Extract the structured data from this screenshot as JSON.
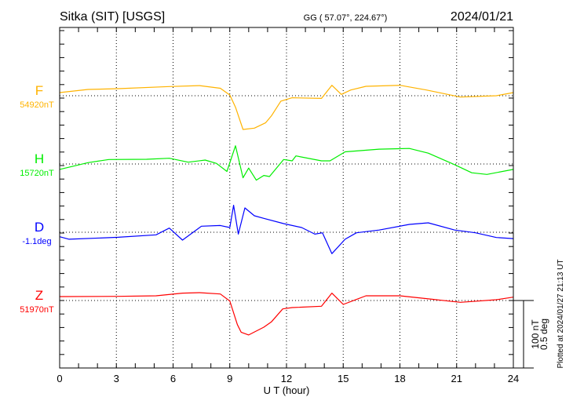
{
  "header": {
    "station": "Sitka (SIT)  [USGS]",
    "coords": "GG ( 57.07°, 224.67°)",
    "date": "2024/01/21"
  },
  "footer": {
    "plotted": "Plotted at 2024/01/27 21:13 UT"
  },
  "scale": {
    "nT_label": "100 nT",
    "deg_label": "0.5 deg",
    "nT": 100,
    "deg": 0.5
  },
  "chart_data": {
    "type": "line",
    "title": "Sitka (SIT) [USGS] 2024/01/21",
    "xlabel": "U T (hour)",
    "xlim": [
      0,
      24
    ],
    "xticks": [
      "0",
      "3",
      "6",
      "9",
      "12",
      "15",
      "18",
      "21",
      "24"
    ],
    "grid": true,
    "series": [
      {
        "name": "F",
        "baseline_label": "54920nT",
        "color": "#ffb300",
        "unit": "nT",
        "t": [
          0,
          1.5,
          3.1,
          5.8,
          7.4,
          8.5,
          9.0,
          9.3,
          9.7,
          10.3,
          10.9,
          11.2,
          11.7,
          12.3,
          13.85,
          14.4,
          14.9,
          15.4,
          16.2,
          18,
          19.4,
          21.2,
          23.1,
          24
        ],
        "v": [
          4.7,
          9.3,
          10.5,
          13.6,
          15,
          11,
          1,
          -17,
          -50,
          -48,
          -40,
          -30,
          -8,
          -3,
          -4,
          15.5,
          2,
          8.5,
          14,
          15.5,
          8.5,
          -2,
          0,
          4.7
        ]
      },
      {
        "name": "H",
        "baseline_label": "15720nT",
        "color": "#00ee00",
        "unit": "nT",
        "t": [
          0,
          1.5,
          2.6,
          4.6,
          5.8,
          6.8,
          7.7,
          8.3,
          8.85,
          9.3,
          9.7,
          10.0,
          10.4,
          10.8,
          11.1,
          11.85,
          12.3,
          12.5,
          13.85,
          14.3,
          15.1,
          16.9,
          18.5,
          19.5,
          20.9,
          21.8,
          22.6,
          24
        ],
        "v": [
          -8,
          2,
          6.6,
          7,
          8.5,
          2.7,
          5.8,
          0.8,
          -11,
          27,
          -20.5,
          -6,
          -24,
          -17,
          -18.6,
          6.6,
          4.7,
          12,
          4.7,
          4.7,
          18,
          22,
          23,
          16,
          -1,
          -13,
          -15.5,
          -8
        ]
      },
      {
        "name": "D",
        "baseline_label": "-1.1deg",
        "color": "#0000ff",
        "unit": "deg",
        "t": [
          0,
          0.5,
          3.1,
          5.1,
          5.8,
          6.5,
          7.5,
          8.5,
          9.0,
          9.2,
          9.45,
          9.8,
          10.3,
          10.8,
          11.85,
          12.8,
          13.5,
          13.9,
          14.4,
          15.1,
          15.7,
          16.9,
          18.5,
          19.5,
          20.9,
          22,
          23.1,
          24
        ],
        "v": [
          -0.033,
          -0.052,
          -0.037,
          -0.019,
          0.031,
          -0.058,
          0.045,
          0.05,
          0.035,
          0.2,
          -0.014,
          0.18,
          0.122,
          0.103,
          0.064,
          0.035,
          -0.014,
          -0.004,
          -0.159,
          -0.052,
          -0.004,
          0.016,
          0.058,
          0.07,
          0.016,
          -0.004,
          -0.039,
          -0.047
        ]
      },
      {
        "name": "Z",
        "baseline_label": "51970nT",
        "color": "#ff0000",
        "unit": "nT",
        "t": [
          0,
          3.1,
          5.1,
          6.5,
          7.4,
          8.5,
          9.0,
          9.4,
          9.6,
          10.0,
          10.8,
          11.2,
          11.8,
          12.3,
          13.85,
          14.4,
          15.0,
          16.2,
          18,
          19.7,
          21.2,
          23.1,
          24
        ],
        "v": [
          5.8,
          6.2,
          7,
          10.9,
          11.6,
          9.7,
          -0.8,
          -35.7,
          -47,
          -51,
          -39.5,
          -31.8,
          -12.4,
          -10.5,
          -8.5,
          10.9,
          -5.8,
          7,
          7,
          1.9,
          -2.7,
          1.2,
          5
        ]
      }
    ]
  }
}
